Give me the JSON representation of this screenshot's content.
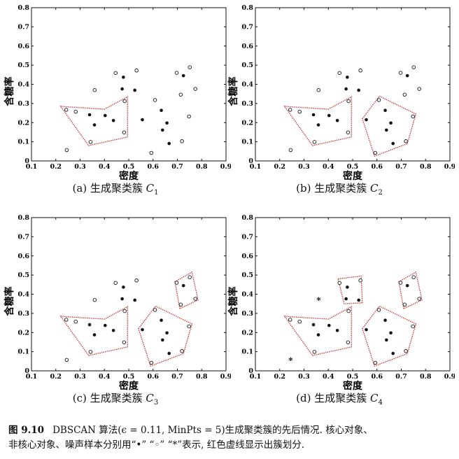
{
  "figure": {
    "label": "图 9.10",
    "caption_line1": "DBSCAN 算法(ϵ = 0.11, MinPts = 5)生成聚类簇的先后情况. 核心对象、",
    "caption_line2": "非核心对象、噪声样本分别用“•” “◦” “*”表示, 红色虚线显示出簇划分."
  },
  "colors": {
    "cluster_outline": "#c8352e",
    "points": "#111111"
  },
  "chart_data": [
    {
      "type": "scatter",
      "panel_label": "(a) 生成聚类簇",
      "cluster_symbol": "C",
      "cluster_index": "1",
      "xlabel": "密度",
      "ylabel": "含糖率",
      "xlim": [
        0.1,
        0.9
      ],
      "ylim": [
        0,
        0.8
      ],
      "xticks": [
        "0.1",
        "0.2",
        "0.3",
        "0.4",
        "0.5",
        "0.6",
        "0.7",
        "0.8",
        "0.9"
      ],
      "yticks": [
        "0",
        "0.1",
        "0.2",
        "0.3",
        "0.4",
        "0.5",
        "0.6",
        "0.7",
        "0.8"
      ],
      "show_noise": false,
      "clusters": [
        [
          [
            0.22,
            0.285
          ],
          [
            0.4,
            0.27
          ],
          [
            0.495,
            0.335
          ],
          [
            0.495,
            0.125
          ],
          [
            0.335,
            0.08
          ]
        ]
      ]
    },
    {
      "type": "scatter",
      "panel_label": "(b) 生成聚类簇",
      "cluster_symbol": "C",
      "cluster_index": "2",
      "xlabel": "密度",
      "ylabel": "含糖率",
      "xlim": [
        0.1,
        0.9
      ],
      "ylim": [
        0,
        0.8
      ],
      "xticks": [
        "0.1",
        "0.2",
        "0.3",
        "0.4",
        "0.5",
        "0.6",
        "0.7",
        "0.8",
        "0.9"
      ],
      "yticks": [
        "0",
        "0.1",
        "0.2",
        "0.3",
        "0.4",
        "0.5",
        "0.6",
        "0.7",
        "0.8"
      ],
      "show_noise": false,
      "clusters": [
        [
          [
            0.22,
            0.285
          ],
          [
            0.4,
            0.27
          ],
          [
            0.495,
            0.335
          ],
          [
            0.495,
            0.125
          ],
          [
            0.335,
            0.08
          ]
        ],
        [
          [
            0.54,
            0.22
          ],
          [
            0.61,
            0.338
          ],
          [
            0.76,
            0.245
          ],
          [
            0.725,
            0.09
          ],
          [
            0.59,
            0.025
          ]
        ]
      ]
    },
    {
      "type": "scatter",
      "panel_label": "(c) 生成聚类簇",
      "cluster_symbol": "C",
      "cluster_index": "3",
      "xlabel": "密度",
      "ylabel": "含糖率",
      "xlim": [
        0.1,
        0.9
      ],
      "ylim": [
        0,
        0.8
      ],
      "xticks": [
        "0.1",
        "0.2",
        "0.3",
        "0.4",
        "0.5",
        "0.6",
        "0.7",
        "0.8",
        "0.9"
      ],
      "yticks": [
        "0",
        "0.1",
        "0.2",
        "0.3",
        "0.4",
        "0.5",
        "0.6",
        "0.7",
        "0.8"
      ],
      "show_noise": false,
      "clusters": [
        [
          [
            0.22,
            0.285
          ],
          [
            0.4,
            0.27
          ],
          [
            0.495,
            0.335
          ],
          [
            0.495,
            0.125
          ],
          [
            0.335,
            0.08
          ]
        ],
        [
          [
            0.54,
            0.22
          ],
          [
            0.61,
            0.338
          ],
          [
            0.76,
            0.245
          ],
          [
            0.725,
            0.09
          ],
          [
            0.59,
            0.025
          ]
        ],
        [
          [
            0.69,
            0.465
          ],
          [
            0.76,
            0.515
          ],
          [
            0.785,
            0.37
          ],
          [
            0.71,
            0.325
          ]
        ]
      ]
    },
    {
      "type": "scatter",
      "panel_label": "(d) 生成聚类簇",
      "cluster_symbol": "C",
      "cluster_index": "4",
      "xlabel": "密度",
      "ylabel": "含糖率",
      "xlim": [
        0.1,
        0.9
      ],
      "ylim": [
        0,
        0.8
      ],
      "xticks": [
        "0.1",
        "0.2",
        "0.3",
        "0.4",
        "0.5",
        "0.6",
        "0.7",
        "0.8",
        "0.9"
      ],
      "yticks": [
        "0",
        "0.1",
        "0.2",
        "0.3",
        "0.4",
        "0.5",
        "0.6",
        "0.7",
        "0.8"
      ],
      "show_noise": true,
      "clusters": [
        [
          [
            0.22,
            0.285
          ],
          [
            0.4,
            0.27
          ],
          [
            0.495,
            0.335
          ],
          [
            0.495,
            0.125
          ],
          [
            0.335,
            0.08
          ]
        ],
        [
          [
            0.54,
            0.22
          ],
          [
            0.61,
            0.338
          ],
          [
            0.76,
            0.245
          ],
          [
            0.725,
            0.09
          ],
          [
            0.59,
            0.025
          ]
        ],
        [
          [
            0.69,
            0.465
          ],
          [
            0.76,
            0.515
          ],
          [
            0.785,
            0.37
          ],
          [
            0.71,
            0.325
          ]
        ],
        [
          [
            0.44,
            0.48
          ],
          [
            0.535,
            0.495
          ],
          [
            0.54,
            0.355
          ],
          [
            0.465,
            0.35
          ]
        ]
      ]
    }
  ],
  "points": {
    "core": [
      [
        0.339,
        0.241
      ],
      [
        0.403,
        0.237
      ],
      [
        0.359,
        0.188
      ],
      [
        0.437,
        0.211
      ],
      [
        0.478,
        0.437
      ],
      [
        0.473,
        0.376
      ],
      [
        0.525,
        0.369
      ],
      [
        0.556,
        0.215
      ],
      [
        0.634,
        0.264
      ],
      [
        0.657,
        0.198
      ],
      [
        0.639,
        0.161
      ],
      [
        0.666,
        0.091
      ],
      [
        0.725,
        0.445
      ]
    ],
    "border": [
      [
        0.697,
        0.46
      ],
      [
        0.774,
        0.376
      ],
      [
        0.608,
        0.318
      ],
      [
        0.481,
        0.149
      ],
      [
        0.243,
        0.267
      ],
      [
        0.343,
        0.099
      ],
      [
        0.593,
        0.042
      ],
      [
        0.719,
        0.103
      ],
      [
        0.282,
        0.257
      ],
      [
        0.748,
        0.232
      ],
      [
        0.714,
        0.346
      ],
      [
        0.483,
        0.312
      ],
      [
        0.751,
        0.489
      ],
      [
        0.532,
        0.472
      ],
      [
        0.446,
        0.459
      ]
    ],
    "noise": [
      [
        0.36,
        0.37
      ],
      [
        0.245,
        0.057
      ]
    ]
  }
}
